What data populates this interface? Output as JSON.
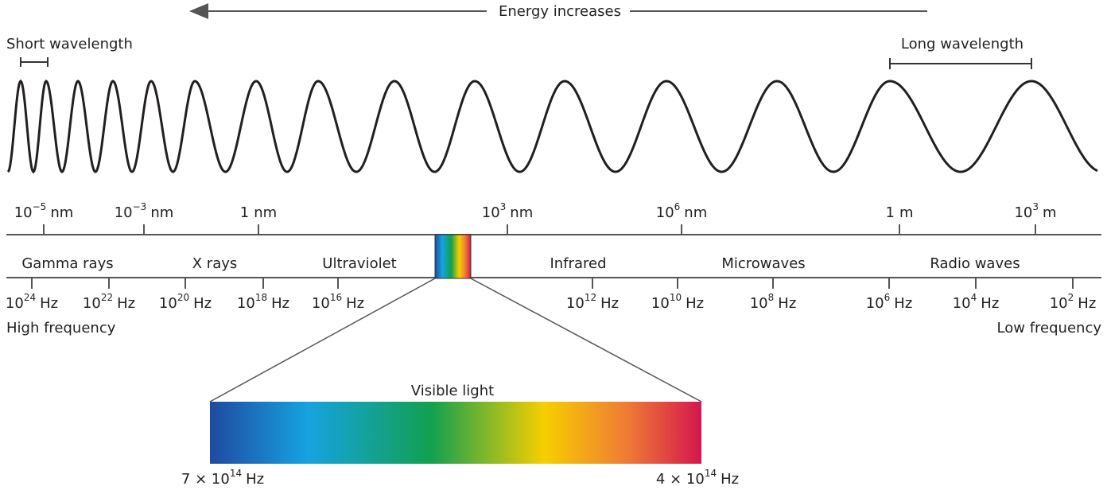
{
  "header": {
    "title": "Energy increases"
  },
  "wavelength_notes": {
    "short": "Short wavelength",
    "long": "Long wavelength"
  },
  "wavelength_ticks": [
    {
      "base": "10",
      "exp": "−5",
      "unit": "nm"
    },
    {
      "base": "10",
      "exp": "−3",
      "unit": "nm"
    },
    {
      "base": "1",
      "unit": "nm"
    },
    {
      "base": "10",
      "exp": "3",
      "unit": "nm"
    },
    {
      "base": "10",
      "exp": "6",
      "unit": "nm"
    },
    {
      "base": "1",
      "unit": "m"
    },
    {
      "base": "10",
      "exp": "3",
      "unit": "m"
    }
  ],
  "bands": [
    "Gamma rays",
    "X rays",
    "Ultraviolet",
    "Infrared",
    "Microwaves",
    "Radio waves"
  ],
  "frequency_ticks": [
    {
      "base": "10",
      "exp": "24",
      "unit": "Hz"
    },
    {
      "base": "10",
      "exp": "22",
      "unit": "Hz"
    },
    {
      "base": "10",
      "exp": "20",
      "unit": "Hz"
    },
    {
      "base": "10",
      "exp": "18",
      "unit": "Hz"
    },
    {
      "base": "10",
      "exp": "16",
      "unit": "Hz"
    },
    {
      "base": "10",
      "exp": "12",
      "unit": "Hz"
    },
    {
      "base": "10",
      "exp": "10",
      "unit": "Hz"
    },
    {
      "base": "10",
      "exp": "8",
      "unit": "Hz"
    },
    {
      "base": "10",
      "exp": "6",
      "unit": "Hz"
    },
    {
      "base": "10",
      "exp": "4",
      "unit": "Hz"
    },
    {
      "base": "10",
      "exp": "2",
      "unit": "Hz"
    }
  ],
  "frequency_notes": {
    "high": "High frequency",
    "low": "Low frequency"
  },
  "visible": {
    "title": "Visible light",
    "left": {
      "base": "7 × 10",
      "exp": "14",
      "unit": "Hz"
    },
    "right": {
      "base": "4 × 10",
      "exp": "14",
      "unit": "Hz"
    }
  }
}
